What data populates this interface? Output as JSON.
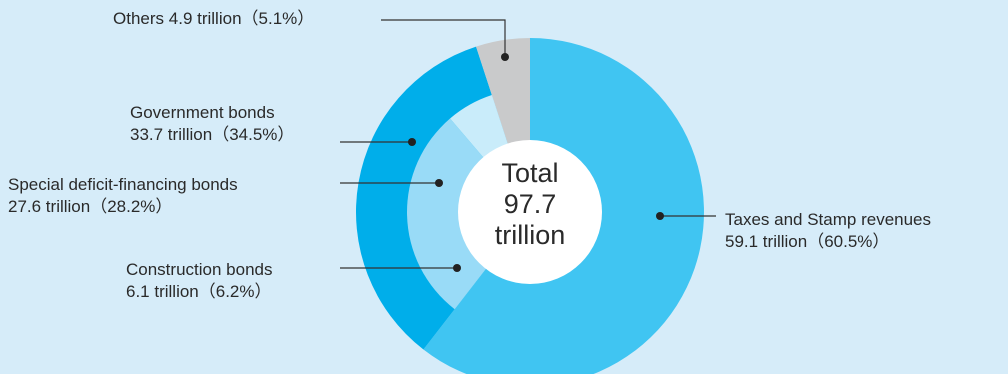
{
  "chart_data": {
    "type": "pie",
    "center_label": {
      "line1": "Total",
      "line2": "97.7",
      "line3": "trillion"
    },
    "slices": [
      {
        "name": "Taxes and Stamp revenues",
        "value": 59.1,
        "pct": 60.5,
        "text": "59.1 trillion（60.5%）",
        "color": "#40c5f2",
        "ring": "outer"
      },
      {
        "name": "Government bonds",
        "value": 33.7,
        "pct": 34.5,
        "text": "33.7 trillion（34.5%）",
        "color": "#00aeea",
        "ring": "outer"
      },
      {
        "name": "Others",
        "value": 4.9,
        "pct": 5.1,
        "text": "4.9 trillion（5.1%）",
        "color": "#c9cacb",
        "ring": "outer"
      }
    ],
    "sub_slices": [
      {
        "name": "Special deficit-financing bonds",
        "value": 27.6,
        "pct": 28.2,
        "text": "27.6 trillion（28.2%）",
        "color": "#99dbf7",
        "ring": "inner"
      },
      {
        "name": "Construction bonds",
        "value": 6.1,
        "pct": 6.2,
        "text": "6.1 trillion（6.2%）",
        "color": "#c9ecfa",
        "ring": "inner"
      }
    ]
  }
}
